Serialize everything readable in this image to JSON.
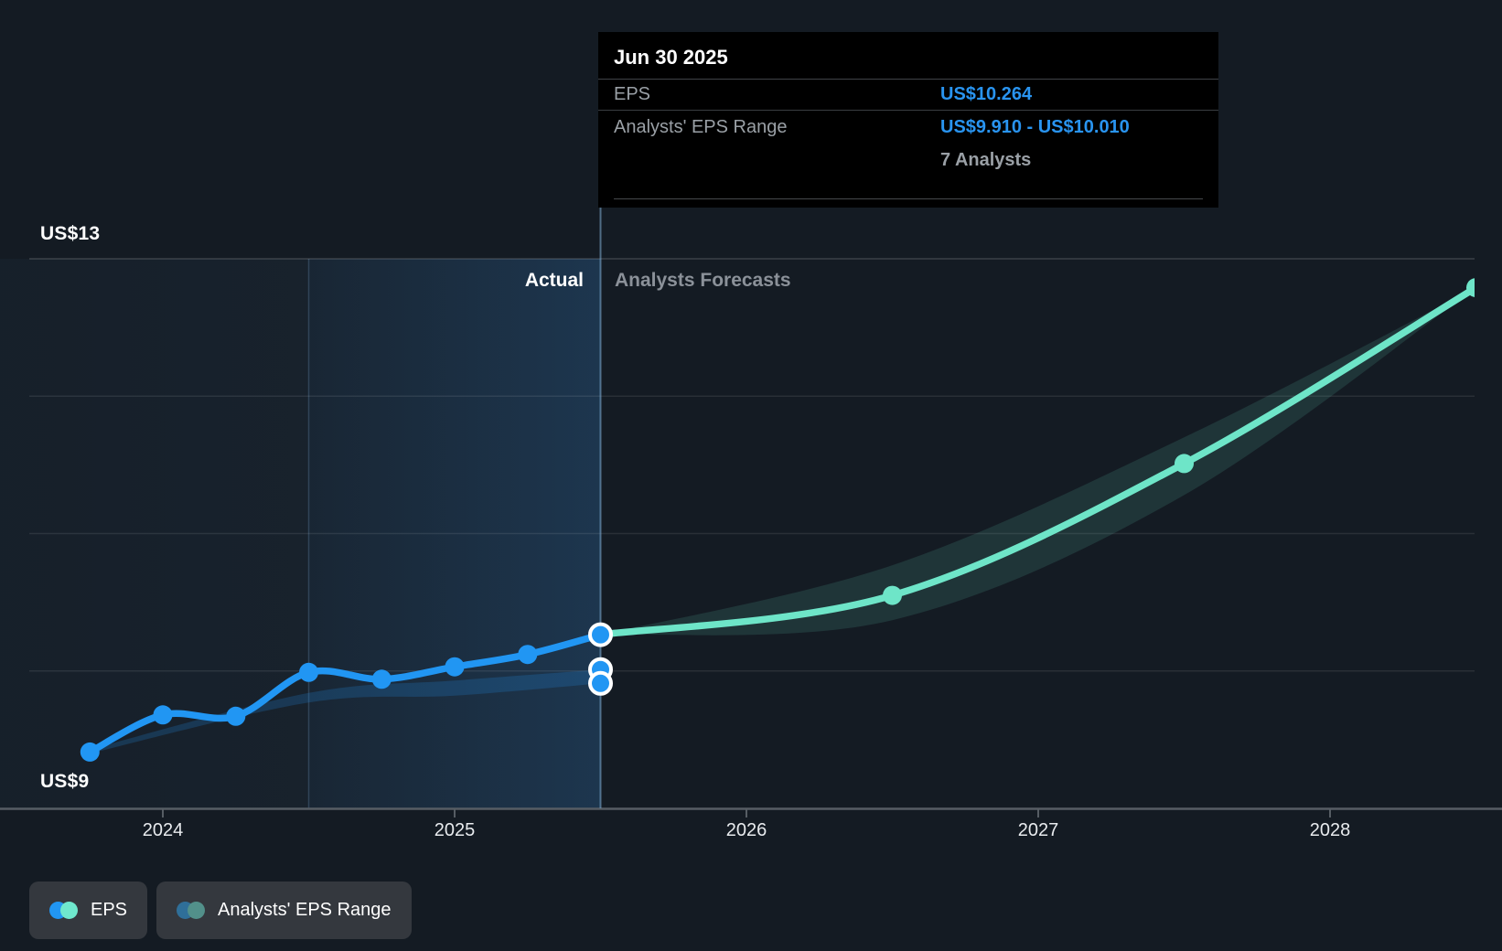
{
  "colors": {
    "background": "#141b23",
    "eps_actual_line": "#2196f3",
    "eps_forecast_line": "#6ee5c8",
    "actual_range_fill": "rgba(33,150,243,0.20)",
    "forecast_range_fill": "rgba(110,231,202,0.13)",
    "grid_line": "rgba(255,255,255,0.09)",
    "grid_line_top": "rgba(255,255,255,0.17)",
    "axis_line": "#565d64",
    "divider_line": "rgba(130,175,215,0.55)",
    "band_edge_line": "rgba(110,150,190,0.28)",
    "tooltip_value_blue": "#2994f0",
    "muted_text": "#9aa0a6"
  },
  "tooltip": {
    "title": "Jun 30 2025",
    "rows": [
      {
        "label": "EPS",
        "value": "US$10.264"
      },
      {
        "label": "Analysts' EPS Range",
        "value": "US$9.910 - US$10.010",
        "sub": "7 Analysts"
      }
    ]
  },
  "labels": {
    "actual": "Actual",
    "forecast": "Analysts Forecasts"
  },
  "axis": {
    "y_top": "US$13",
    "y_bottom": "US$9"
  },
  "legend": {
    "items": [
      {
        "label": "EPS",
        "dot_colors": [
          "#2196f3",
          "#6fe8cd"
        ]
      },
      {
        "label": "Analysts' EPS Range",
        "dot_colors": [
          "#2f6f99",
          "#52908a"
        ]
      }
    ]
  },
  "chart_data": {
    "type": "line",
    "title": "EPS — actual results and analysts' forecasts",
    "x_unit": "year (fractional = quarter/fiscal period end)",
    "ylim": [
      9,
      13
    ],
    "y_gridlines": [
      13,
      12,
      11,
      10
    ],
    "x_ticks": [
      2024,
      2025,
      2026,
      2027,
      2028
    ],
    "divider_x": 2025.5,
    "highlight_band_x": [
      2024.5,
      2025.5
    ],
    "series": [
      {
        "id": "eps-actual",
        "name": "EPS (actual)",
        "color": "#2196f3",
        "points": [
          [
            2023.75,
            9.41
          ],
          [
            2024.0,
            9.68
          ],
          [
            2024.25,
            9.67
          ],
          [
            2024.5,
            9.99
          ],
          [
            2024.75,
            9.94
          ],
          [
            2025.0,
            10.03
          ],
          [
            2025.25,
            10.12
          ],
          [
            2025.5,
            10.264
          ]
        ],
        "marker_points": [
          [
            2023.75,
            9.41
          ],
          [
            2024.0,
            9.68
          ],
          [
            2024.25,
            9.67
          ],
          [
            2024.5,
            9.99
          ],
          [
            2024.75,
            9.94
          ],
          [
            2025.0,
            10.03
          ],
          [
            2025.25,
            10.12
          ]
        ]
      },
      {
        "id": "eps-forecast",
        "name": "EPS (analysts forecast)",
        "color": "#6ee5c8",
        "points": [
          [
            2025.5,
            10.264
          ],
          [
            2026.5,
            10.55
          ],
          [
            2027.5,
            11.51
          ],
          [
            2028.5,
            12.79
          ]
        ],
        "marker_points": [
          [
            2026.5,
            10.55
          ],
          [
            2027.5,
            11.51
          ],
          [
            2028.5,
            12.79
          ]
        ]
      }
    ],
    "ranges": [
      {
        "id": "analysts-range-actual",
        "name": "Analysts' EPS Range (historical)",
        "fill": "rgba(33,150,243,0.20)",
        "points": [
          [
            2023.75,
            9.4,
            9.43
          ],
          [
            2024.5,
            9.77,
            9.84
          ],
          [
            2025.0,
            9.82,
            9.93
          ],
          [
            2025.5,
            9.91,
            10.01
          ]
        ]
      },
      {
        "id": "analysts-range-forecast",
        "name": "Analysts' EPS Range (forecast)",
        "fill": "rgba(110,231,202,0.13)",
        "points": [
          [
            2025.5,
            10.264,
            10.264
          ],
          [
            2026.5,
            10.37,
            10.77
          ],
          [
            2027.5,
            11.28,
            11.7
          ],
          [
            2028.5,
            12.79,
            12.79
          ]
        ]
      }
    ],
    "highlighted_points": [
      {
        "x": 2025.5,
        "y": 10.264,
        "note": "EPS actual Jun 30 2025"
      },
      {
        "x": 2025.5,
        "y": 10.01,
        "note": "Analysts range high"
      },
      {
        "x": 2025.5,
        "y": 9.91,
        "note": "Analysts range low"
      }
    ]
  }
}
